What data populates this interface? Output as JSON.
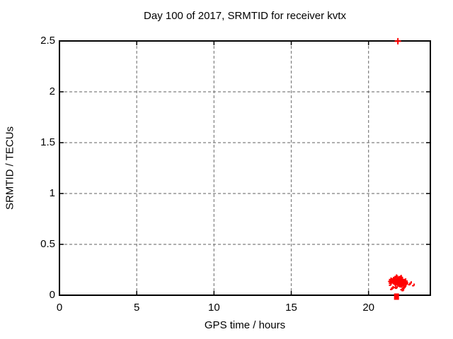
{
  "chart_data": {
    "type": "scatter",
    "title": "Day 100 of 2017, SRMTID for receiver kvtx",
    "xlabel": "GPS time / hours",
    "ylabel": "SRMTID / TECUs",
    "xlim": [
      0,
      24
    ],
    "ylim": [
      0,
      2.5
    ],
    "xticks": {
      "values": [
        0,
        5,
        10,
        15,
        20
      ],
      "labels": [
        "0",
        "5",
        "10",
        "15",
        "20"
      ]
    },
    "yticks": {
      "values": [
        0,
        0.5,
        1,
        1.5,
        2,
        2.5
      ],
      "labels": [
        "0",
        "0.5",
        "1",
        "1.5",
        "2",
        "2.5"
      ]
    },
    "grid": {
      "visible": true,
      "style": "dashed",
      "color": "#7f7f7f"
    },
    "legend": {
      "visible": false
    },
    "background": "#ffffff",
    "axis_color": "#000000",
    "series": [
      {
        "name": "SRMTID",
        "color": "#ff0000",
        "marker": "plus",
        "outlier_point": {
          "x": 21.9,
          "y": 2.497,
          "marker": "plus"
        },
        "axis_edge_point": {
          "x": 21.81,
          "y": 0.0,
          "marker": "filled-square"
        },
        "cluster": {
          "description": "dense blob of overlapping plus markers",
          "center": [
            22.05,
            0.115
          ],
          "sigma": [
            0.27,
            0.029
          ],
          "x_range": [
            21.4,
            22.95
          ],
          "y_range": [
            0.045,
            0.195
          ],
          "count": 150,
          "seed": 11
        }
      }
    ]
  }
}
